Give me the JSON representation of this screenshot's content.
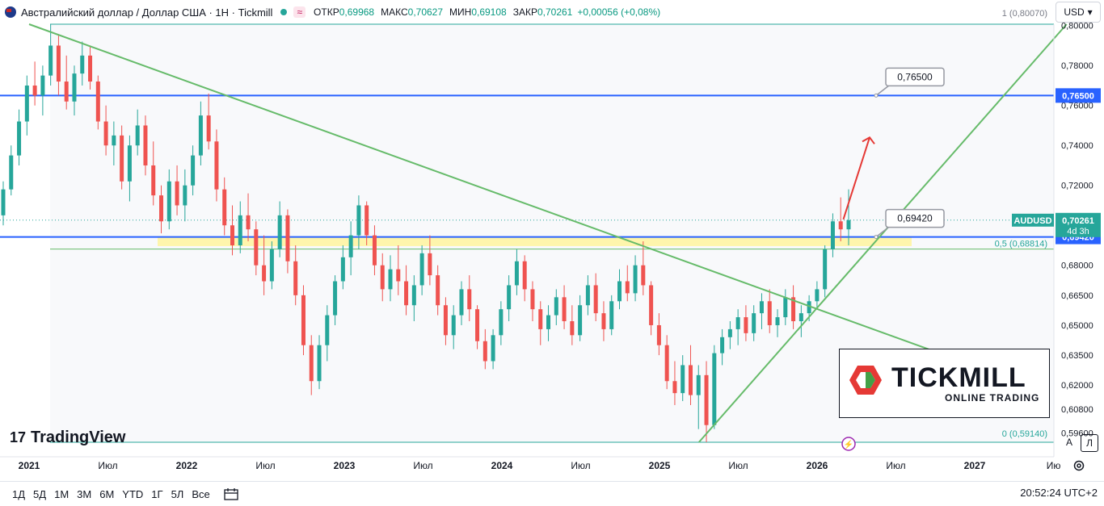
{
  "header": {
    "symbol_title": "Австралийский доллар / Доллар США · 1Н · Tickmill",
    "ohlc": [
      {
        "label": "ОТКР",
        "value": "0,69968"
      },
      {
        "label": "МАКС",
        "value": "0,70627"
      },
      {
        "label": "МИН",
        "value": "0,69108"
      },
      {
        "label": "ЗАКР",
        "value": "0,70261"
      }
    ],
    "change": "+0,00056 (+0,08%)",
    "pill_glyph": "≈",
    "currency": "USD",
    "currency_caret": "▾"
  },
  "chart_data": {
    "type": "candlestick",
    "symbol": "AUDUSD",
    "y_scale": "linear",
    "ylim": [
      0.5914,
      0.8007
    ],
    "y_ticks": [
      {
        "value": 0.8,
        "label": "0,80000"
      },
      {
        "value": 0.78,
        "label": "0,78000"
      },
      {
        "value": 0.76,
        "label": "0,76000"
      },
      {
        "value": 0.74,
        "label": "0,74000"
      },
      {
        "value": 0.72,
        "label": "0,72000"
      },
      {
        "value": 0.7,
        "label": "0,70000"
      },
      {
        "value": 0.68,
        "label": "0,68000"
      },
      {
        "value": 0.665,
        "label": "0,66500"
      },
      {
        "value": 0.65,
        "label": "0,65000"
      },
      {
        "value": 0.635,
        "label": "0,63500"
      },
      {
        "value": 0.62,
        "label": "0,62000"
      },
      {
        "value": 0.608,
        "label": "0,60800"
      },
      {
        "value": 0.596,
        "label": "0,59600"
      }
    ],
    "x_ticks": [
      "2021",
      "Июл",
      "2022",
      "Июл",
      "2023",
      "Июл",
      "2024",
      "Июл",
      "2025",
      "Июл",
      "2026",
      "Июл",
      "2027",
      "Ию"
    ],
    "x_ticks_bold": [
      "2021",
      "2022",
      "2023",
      "2024",
      "2025",
      "2026",
      "2027"
    ],
    "price_labels": [
      {
        "value": 0.765,
        "text": "0,76500",
        "color": "#2962ff"
      },
      {
        "value": 0.6942,
        "text": "0,69420",
        "color": "#2962ff"
      }
    ],
    "last_price": {
      "symbol": "AUDUSD",
      "value": "0,70261",
      "countdown": "4d 3h",
      "color": "#26a69a"
    },
    "horizontal_lines": [
      {
        "value": 0.765,
        "color": "#2962ff"
      },
      {
        "value": 0.6942,
        "color": "#2962ff"
      }
    ],
    "callouts": [
      {
        "text": "0,76500",
        "value": 0.765
      },
      {
        "text": "0,69420",
        "value": 0.6942
      }
    ],
    "fib_levels": [
      {
        "ratio": "1",
        "value": 0.8007,
        "label": "1 (0,80070)"
      },
      {
        "ratio": "0,5",
        "value": 0.68814,
        "label": "0,5 (0,68814)"
      },
      {
        "ratio": "0",
        "value": 0.5914,
        "label": "0 (0,59140)"
      }
    ],
    "support_zone": {
      "low": 0.6896,
      "high": 0.6941,
      "color": "#fff59d"
    },
    "trendlines": [
      {
        "name": "down",
        "from": {
          "x": "2021-01",
          "y": 0.8007
        },
        "to": {
          "x": "2026-12",
          "y": 0.632
        },
        "color": "#66bb6a"
      },
      {
        "name": "up",
        "from": {
          "x": "2025-04",
          "y": 0.5914
        },
        "to": {
          "x": "2027-08",
          "y": 0.8007
        },
        "color": "#66bb6a"
      }
    ],
    "arrow": {
      "from": {
        "x": "2026-03",
        "y": 0.703
      },
      "to": {
        "x": "2026-05",
        "y": 0.744
      },
      "color": "#e53935"
    },
    "candles": [
      {
        "o": 0.705,
        "h": 0.722,
        "l": 0.7,
        "c": 0.718
      },
      {
        "o": 0.718,
        "h": 0.74,
        "l": 0.715,
        "c": 0.735
      },
      {
        "o": 0.735,
        "h": 0.758,
        "l": 0.73,
        "c": 0.752
      },
      {
        "o": 0.752,
        "h": 0.775,
        "l": 0.745,
        "c": 0.77
      },
      {
        "o": 0.77,
        "h": 0.782,
        "l": 0.76,
        "c": 0.765
      },
      {
        "o": 0.765,
        "h": 0.78,
        "l": 0.755,
        "c": 0.775
      },
      {
        "o": 0.775,
        "h": 0.8007,
        "l": 0.77,
        "c": 0.79
      },
      {
        "o": 0.79,
        "h": 0.795,
        "l": 0.765,
        "c": 0.772
      },
      {
        "o": 0.772,
        "h": 0.785,
        "l": 0.758,
        "c": 0.762
      },
      {
        "o": 0.762,
        "h": 0.78,
        "l": 0.755,
        "c": 0.776
      },
      {
        "o": 0.776,
        "h": 0.792,
        "l": 0.77,
        "c": 0.785
      },
      {
        "o": 0.785,
        "h": 0.79,
        "l": 0.768,
        "c": 0.772
      },
      {
        "o": 0.772,
        "h": 0.775,
        "l": 0.748,
        "c": 0.752
      },
      {
        "o": 0.752,
        "h": 0.76,
        "l": 0.735,
        "c": 0.74
      },
      {
        "o": 0.74,
        "h": 0.752,
        "l": 0.73,
        "c": 0.745
      },
      {
        "o": 0.745,
        "h": 0.75,
        "l": 0.718,
        "c": 0.722
      },
      {
        "o": 0.722,
        "h": 0.745,
        "l": 0.712,
        "c": 0.74
      },
      {
        "o": 0.74,
        "h": 0.758,
        "l": 0.735,
        "c": 0.75
      },
      {
        "o": 0.75,
        "h": 0.755,
        "l": 0.725,
        "c": 0.73
      },
      {
        "o": 0.73,
        "h": 0.742,
        "l": 0.71,
        "c": 0.715
      },
      {
        "o": 0.715,
        "h": 0.72,
        "l": 0.696,
        "c": 0.702
      },
      {
        "o": 0.702,
        "h": 0.728,
        "l": 0.698,
        "c": 0.722
      },
      {
        "o": 0.722,
        "h": 0.73,
        "l": 0.705,
        "c": 0.71
      },
      {
        "o": 0.71,
        "h": 0.728,
        "l": 0.702,
        "c": 0.72
      },
      {
        "o": 0.72,
        "h": 0.74,
        "l": 0.715,
        "c": 0.735
      },
      {
        "o": 0.735,
        "h": 0.762,
        "l": 0.73,
        "c": 0.755
      },
      {
        "o": 0.755,
        "h": 0.766,
        "l": 0.738,
        "c": 0.742
      },
      {
        "o": 0.742,
        "h": 0.748,
        "l": 0.712,
        "c": 0.718
      },
      {
        "o": 0.718,
        "h": 0.724,
        "l": 0.695,
        "c": 0.7
      },
      {
        "o": 0.7,
        "h": 0.71,
        "l": 0.685,
        "c": 0.69
      },
      {
        "o": 0.69,
        "h": 0.712,
        "l": 0.686,
        "c": 0.705
      },
      {
        "o": 0.705,
        "h": 0.716,
        "l": 0.692,
        "c": 0.698
      },
      {
        "o": 0.698,
        "h": 0.702,
        "l": 0.675,
        "c": 0.68
      },
      {
        "o": 0.68,
        "h": 0.695,
        "l": 0.665,
        "c": 0.672
      },
      {
        "o": 0.672,
        "h": 0.692,
        "l": 0.668,
        "c": 0.688
      },
      {
        "o": 0.688,
        "h": 0.712,
        "l": 0.684,
        "c": 0.705
      },
      {
        "o": 0.705,
        "h": 0.708,
        "l": 0.676,
        "c": 0.682
      },
      {
        "o": 0.682,
        "h": 0.69,
        "l": 0.66,
        "c": 0.665
      },
      {
        "o": 0.665,
        "h": 0.67,
        "l": 0.635,
        "c": 0.64
      },
      {
        "o": 0.64,
        "h": 0.645,
        "l": 0.615,
        "c": 0.622
      },
      {
        "o": 0.622,
        "h": 0.645,
        "l": 0.618,
        "c": 0.64
      },
      {
        "o": 0.64,
        "h": 0.66,
        "l": 0.632,
        "c": 0.655
      },
      {
        "o": 0.655,
        "h": 0.675,
        "l": 0.65,
        "c": 0.672
      },
      {
        "o": 0.672,
        "h": 0.69,
        "l": 0.668,
        "c": 0.684
      },
      {
        "o": 0.684,
        "h": 0.702,
        "l": 0.675,
        "c": 0.695
      },
      {
        "o": 0.695,
        "h": 0.715,
        "l": 0.688,
        "c": 0.71
      },
      {
        "o": 0.71,
        "h": 0.712,
        "l": 0.69,
        "c": 0.695
      },
      {
        "o": 0.695,
        "h": 0.7,
        "l": 0.675,
        "c": 0.68
      },
      {
        "o": 0.68,
        "h": 0.686,
        "l": 0.662,
        "c": 0.668
      },
      {
        "o": 0.668,
        "h": 0.685,
        "l": 0.662,
        "c": 0.678
      },
      {
        "o": 0.678,
        "h": 0.69,
        "l": 0.665,
        "c": 0.672
      },
      {
        "o": 0.672,
        "h": 0.68,
        "l": 0.655,
        "c": 0.66
      },
      {
        "o": 0.66,
        "h": 0.675,
        "l": 0.652,
        "c": 0.67
      },
      {
        "o": 0.67,
        "h": 0.69,
        "l": 0.665,
        "c": 0.686
      },
      {
        "o": 0.686,
        "h": 0.695,
        "l": 0.67,
        "c": 0.675
      },
      {
        "o": 0.675,
        "h": 0.68,
        "l": 0.655,
        "c": 0.66
      },
      {
        "o": 0.66,
        "h": 0.664,
        "l": 0.64,
        "c": 0.645
      },
      {
        "o": 0.645,
        "h": 0.66,
        "l": 0.638,
        "c": 0.655
      },
      {
        "o": 0.655,
        "h": 0.672,
        "l": 0.65,
        "c": 0.668
      },
      {
        "o": 0.668,
        "h": 0.675,
        "l": 0.652,
        "c": 0.658
      },
      {
        "o": 0.658,
        "h": 0.66,
        "l": 0.638,
        "c": 0.642
      },
      {
        "o": 0.642,
        "h": 0.648,
        "l": 0.628,
        "c": 0.632
      },
      {
        "o": 0.632,
        "h": 0.648,
        "l": 0.628,
        "c": 0.645
      },
      {
        "o": 0.645,
        "h": 0.662,
        "l": 0.64,
        "c": 0.658
      },
      {
        "o": 0.658,
        "h": 0.675,
        "l": 0.652,
        "c": 0.67
      },
      {
        "o": 0.67,
        "h": 0.688,
        "l": 0.665,
        "c": 0.682
      },
      {
        "o": 0.682,
        "h": 0.685,
        "l": 0.662,
        "c": 0.668
      },
      {
        "o": 0.668,
        "h": 0.672,
        "l": 0.652,
        "c": 0.658
      },
      {
        "o": 0.658,
        "h": 0.662,
        "l": 0.64,
        "c": 0.648
      },
      {
        "o": 0.648,
        "h": 0.66,
        "l": 0.642,
        "c": 0.655
      },
      {
        "o": 0.655,
        "h": 0.668,
        "l": 0.65,
        "c": 0.664
      },
      {
        "o": 0.664,
        "h": 0.67,
        "l": 0.648,
        "c": 0.652
      },
      {
        "o": 0.652,
        "h": 0.66,
        "l": 0.64,
        "c": 0.645
      },
      {
        "o": 0.645,
        "h": 0.665,
        "l": 0.642,
        "c": 0.66
      },
      {
        "o": 0.66,
        "h": 0.675,
        "l": 0.655,
        "c": 0.67
      },
      {
        "o": 0.67,
        "h": 0.676,
        "l": 0.652,
        "c": 0.656
      },
      {
        "o": 0.656,
        "h": 0.662,
        "l": 0.642,
        "c": 0.648
      },
      {
        "o": 0.648,
        "h": 0.665,
        "l": 0.645,
        "c": 0.662
      },
      {
        "o": 0.662,
        "h": 0.678,
        "l": 0.658,
        "c": 0.672
      },
      {
        "o": 0.672,
        "h": 0.68,
        "l": 0.662,
        "c": 0.666
      },
      {
        "o": 0.666,
        "h": 0.685,
        "l": 0.662,
        "c": 0.68
      },
      {
        "o": 0.68,
        "h": 0.692,
        "l": 0.665,
        "c": 0.67
      },
      {
        "o": 0.67,
        "h": 0.672,
        "l": 0.645,
        "c": 0.65
      },
      {
        "o": 0.65,
        "h": 0.656,
        "l": 0.635,
        "c": 0.64
      },
      {
        "o": 0.64,
        "h": 0.645,
        "l": 0.618,
        "c": 0.622
      },
      {
        "o": 0.622,
        "h": 0.632,
        "l": 0.61,
        "c": 0.616
      },
      {
        "o": 0.616,
        "h": 0.635,
        "l": 0.612,
        "c": 0.63
      },
      {
        "o": 0.63,
        "h": 0.64,
        "l": 0.61,
        "c": 0.615
      },
      {
        "o": 0.615,
        "h": 0.63,
        "l": 0.598,
        "c": 0.625
      },
      {
        "o": 0.625,
        "h": 0.632,
        "l": 0.5914,
        "c": 0.6
      },
      {
        "o": 0.6,
        "h": 0.64,
        "l": 0.598,
        "c": 0.636
      },
      {
        "o": 0.636,
        "h": 0.648,
        "l": 0.63,
        "c": 0.644
      },
      {
        "o": 0.644,
        "h": 0.652,
        "l": 0.638,
        "c": 0.648
      },
      {
        "o": 0.648,
        "h": 0.658,
        "l": 0.64,
        "c": 0.654
      },
      {
        "o": 0.654,
        "h": 0.66,
        "l": 0.642,
        "c": 0.646
      },
      {
        "o": 0.646,
        "h": 0.66,
        "l": 0.642,
        "c": 0.656
      },
      {
        "o": 0.656,
        "h": 0.666,
        "l": 0.648,
        "c": 0.662
      },
      {
        "o": 0.662,
        "h": 0.668,
        "l": 0.646,
        "c": 0.65
      },
      {
        "o": 0.65,
        "h": 0.658,
        "l": 0.644,
        "c": 0.654
      },
      {
        "o": 0.654,
        "h": 0.668,
        "l": 0.65,
        "c": 0.664
      },
      {
        "o": 0.664,
        "h": 0.67,
        "l": 0.648,
        "c": 0.652
      },
      {
        "o": 0.652,
        "h": 0.66,
        "l": 0.644,
        "c": 0.656
      },
      {
        "o": 0.656,
        "h": 0.665,
        "l": 0.652,
        "c": 0.662
      },
      {
        "o": 0.662,
        "h": 0.672,
        "l": 0.658,
        "c": 0.668
      },
      {
        "o": 0.668,
        "h": 0.69,
        "l": 0.664,
        "c": 0.688
      },
      {
        "o": 0.688,
        "h": 0.706,
        "l": 0.684,
        "c": 0.702
      },
      {
        "o": 0.702,
        "h": 0.714,
        "l": 0.692,
        "c": 0.698
      },
      {
        "o": 0.698,
        "h": 0.718,
        "l": 0.69,
        "c": 0.7026
      }
    ]
  },
  "watermark": {
    "brand": "TradingView",
    "logo_glyph": "17"
  },
  "sponsor": {
    "name": "TICKMILL",
    "tagline": "ONLINE TRADING",
    "colors": {
      "red": "#e53935",
      "green": "#43a047"
    }
  },
  "chart_buttons": {
    "auto": "A",
    "log": "Л"
  },
  "timeframes": [
    "1Д",
    "5Д",
    "1М",
    "3М",
    "6М",
    "YTD",
    "1Г",
    "5Л",
    "Все"
  ],
  "clock": "20:52:24 UTC+2",
  "colors": {
    "up": "#26a69a",
    "down": "#ef5350",
    "accent": "#2962ff",
    "trend": "#66bb6a",
    "arrow": "#e53935"
  }
}
